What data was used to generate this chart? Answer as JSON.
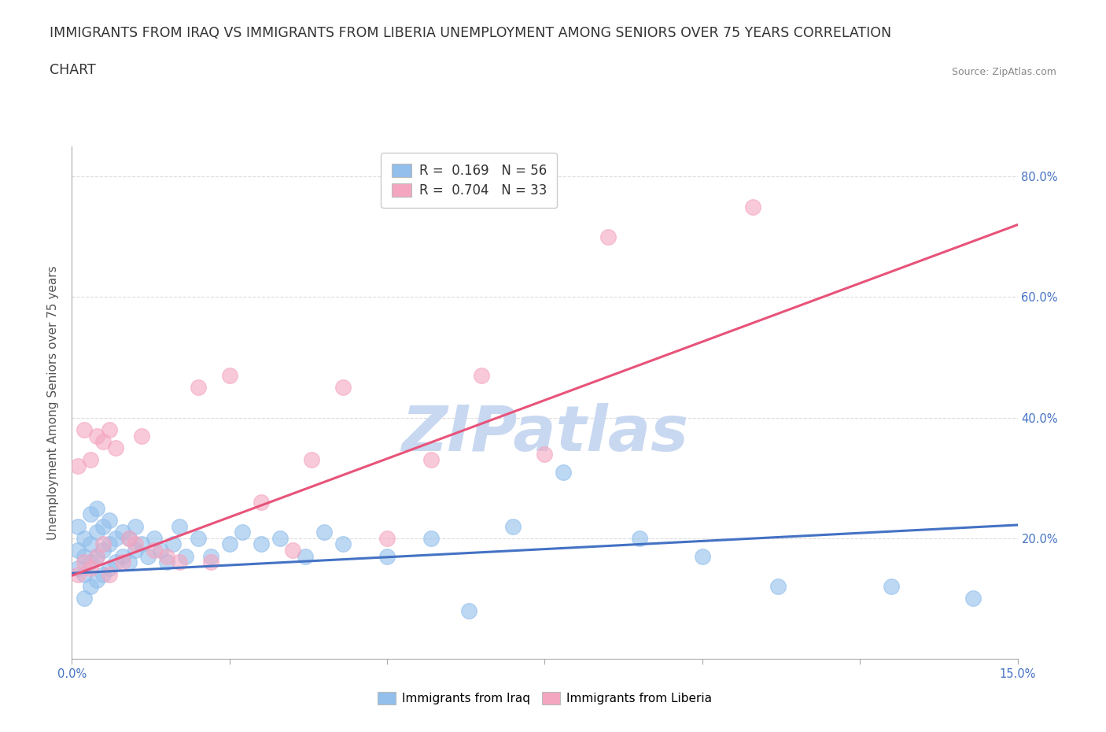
{
  "title_line1": "IMMIGRANTS FROM IRAQ VS IMMIGRANTS FROM LIBERIA UNEMPLOYMENT AMONG SENIORS OVER 75 YEARS CORRELATION",
  "title_line2": "CHART",
  "source_text": "Source: ZipAtlas.com",
  "ylabel": "Unemployment Among Seniors over 75 years",
  "xlim": [
    0.0,
    0.15
  ],
  "ylim": [
    0.0,
    0.85
  ],
  "xtick_positions": [
    0.0,
    0.025,
    0.05,
    0.075,
    0.1,
    0.125,
    0.15
  ],
  "xtick_labels": [
    "0.0%",
    "",
    "",
    "",
    "",
    "",
    "15.0%"
  ],
  "yticks_right": [
    0.2,
    0.4,
    0.6,
    0.8
  ],
  "ytick_right_labels": [
    "20.0%",
    "40.0%",
    "60.0%",
    "80.0%"
  ],
  "legend_iraq": "Immigrants from Iraq",
  "legend_liberia": "Immigrants from Liberia",
  "r_iraq": "0.169",
  "n_iraq": "56",
  "r_liberia": "0.704",
  "n_liberia": "33",
  "color_iraq": "#92BFEC",
  "color_liberia": "#F4A6C0",
  "trendline_iraq_color": "#4472C4",
  "trendline_liberia_color": "#E8537A",
  "watermark": "ZIPatlas",
  "watermark_color": "#C8D8F0",
  "iraq_x": [
    0.001,
    0.001,
    0.001,
    0.002,
    0.002,
    0.002,
    0.002,
    0.003,
    0.003,
    0.003,
    0.003,
    0.004,
    0.004,
    0.004,
    0.004,
    0.005,
    0.005,
    0.005,
    0.006,
    0.006,
    0.006,
    0.007,
    0.007,
    0.008,
    0.008,
    0.009,
    0.009,
    0.01,
    0.01,
    0.011,
    0.012,
    0.013,
    0.014,
    0.015,
    0.016,
    0.017,
    0.018,
    0.02,
    0.022,
    0.025,
    0.027,
    0.03,
    0.033,
    0.037,
    0.04,
    0.043,
    0.05,
    0.057,
    0.063,
    0.07,
    0.078,
    0.09,
    0.1,
    0.112,
    0.13,
    0.143
  ],
  "iraq_y": [
    0.15,
    0.18,
    0.22,
    0.1,
    0.14,
    0.17,
    0.2,
    0.12,
    0.16,
    0.19,
    0.24,
    0.13,
    0.17,
    0.21,
    0.25,
    0.14,
    0.18,
    0.22,
    0.15,
    0.19,
    0.23,
    0.16,
    0.2,
    0.17,
    0.21,
    0.16,
    0.2,
    0.18,
    0.22,
    0.19,
    0.17,
    0.2,
    0.18,
    0.16,
    0.19,
    0.22,
    0.17,
    0.2,
    0.17,
    0.19,
    0.21,
    0.19,
    0.2,
    0.17,
    0.21,
    0.19,
    0.17,
    0.2,
    0.08,
    0.22,
    0.31,
    0.2,
    0.17,
    0.12,
    0.12,
    0.1
  ],
  "liberia_x": [
    0.001,
    0.001,
    0.002,
    0.002,
    0.003,
    0.003,
    0.004,
    0.004,
    0.005,
    0.005,
    0.006,
    0.006,
    0.007,
    0.008,
    0.009,
    0.01,
    0.011,
    0.013,
    0.015,
    0.017,
    0.02,
    0.022,
    0.025,
    0.03,
    0.035,
    0.038,
    0.043,
    0.05,
    0.057,
    0.065,
    0.075,
    0.085,
    0.108
  ],
  "liberia_y": [
    0.14,
    0.32,
    0.16,
    0.38,
    0.15,
    0.33,
    0.17,
    0.37,
    0.19,
    0.36,
    0.14,
    0.38,
    0.35,
    0.16,
    0.2,
    0.19,
    0.37,
    0.18,
    0.17,
    0.16,
    0.45,
    0.16,
    0.47,
    0.26,
    0.18,
    0.33,
    0.45,
    0.2,
    0.33,
    0.47,
    0.34,
    0.7,
    0.75
  ],
  "background_color": "#FFFFFF",
  "grid_color": "#DDDDDD",
  "title_fontsize": 12.5,
  "axis_label_fontsize": 11,
  "tick_fontsize": 10.5
}
